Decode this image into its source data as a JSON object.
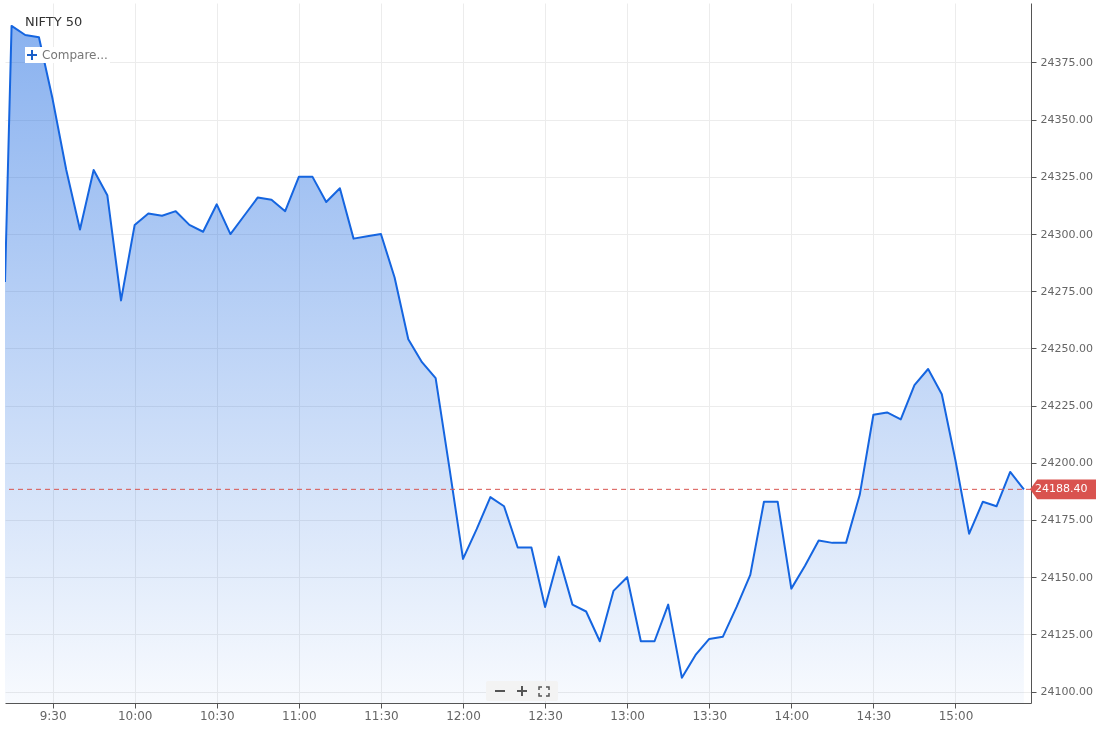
{
  "chart_data": {
    "type": "area",
    "title": "NIFTY 50",
    "annotations": [
      "Compare..."
    ],
    "x": [
      9.21,
      9.25,
      9.3333,
      9.4167,
      9.5,
      9.5833,
      9.6667,
      9.75,
      9.8333,
      9.9167,
      10,
      10.0833,
      10.1667,
      10.25,
      10.3333,
      10.4167,
      10.5,
      10.5833,
      10.6667,
      10.75,
      10.8333,
      10.9167,
      11,
      11.0833,
      11.1667,
      11.25,
      11.3333,
      11.4167,
      11.5,
      11.5833,
      11.6667,
      11.75,
      11.8333,
      11.9167,
      12,
      12.0833,
      12.1667,
      12.25,
      12.3333,
      12.4167,
      12.5,
      12.5833,
      12.6667,
      12.75,
      12.8333,
      12.9167,
      13,
      13.0833,
      13.1667,
      13.25,
      13.3333,
      13.4167,
      13.5,
      13.5833,
      13.6667,
      13.75,
      13.8333,
      13.9167,
      14,
      14.0833,
      14.1667,
      14.25,
      14.3333,
      14.4167,
      14.5,
      14.5833,
      14.6667,
      14.75,
      14.8333,
      14.9167,
      15,
      15.0833,
      15.1667,
      15.25,
      15.3333,
      15.4167
    ],
    "series": [
      {
        "color": "#1565e0",
        "values": [
          24279,
          24391,
          24387,
          24386,
          24359,
          24328,
          24302,
          24328,
          24317,
          24271,
          24304,
          24309,
          24308,
          24310,
          24304,
          24301,
          24313,
          24300,
          24308,
          24316,
          24315,
          24310,
          24325,
          24325,
          24314,
          24320,
          24298,
          24299,
          24300,
          24281,
          24254,
          24244,
          24237,
          24198,
          24158,
          24171,
          24185,
          24181,
          24163,
          24163,
          24137,
          24159,
          24138,
          24135,
          24122,
          24144,
          24150,
          24122,
          24122,
          24138,
          24106,
          24116,
          24123,
          24124,
          24137,
          24151,
          24183,
          24183,
          24145,
          24155,
          24166,
          24165,
          24165,
          24186,
          24221,
          24222,
          24219,
          24234,
          24241,
          24230,
          24201,
          24169,
          24183,
          24181,
          24196,
          24188.4
        ]
      }
    ],
    "xlim": [
      9.21,
      15.46
    ],
    "xticks": [
      {
        "value": 9.5,
        "label": "9:30"
      },
      {
        "value": 10,
        "label": "10:00"
      },
      {
        "value": 10.5,
        "label": "10:30"
      },
      {
        "value": 11,
        "label": "11:00"
      },
      {
        "value": 11.5,
        "label": "11:30"
      },
      {
        "value": 12,
        "label": "12:00"
      },
      {
        "value": 12.5,
        "label": "12:30"
      },
      {
        "value": 13,
        "label": "13:00"
      },
      {
        "value": 13.5,
        "label": "13:30"
      },
      {
        "value": 14,
        "label": "14:00"
      },
      {
        "value": 14.5,
        "label": "14:30"
      },
      {
        "value": 15,
        "label": "15:00"
      }
    ],
    "ylim": [
      24095,
      24401
    ],
    "yticks": [
      {
        "value": 24100,
        "label": "24100.00"
      },
      {
        "value": 24125,
        "label": "24125.00"
      },
      {
        "value": 24150,
        "label": "24150.00"
      },
      {
        "value": 24175,
        "label": "24175.00"
      },
      {
        "value": 24200,
        "label": "24200.00"
      },
      {
        "value": 24225,
        "label": "24225.00"
      },
      {
        "value": 24250,
        "label": "24250.00"
      },
      {
        "value": 24275,
        "label": "24275.00"
      },
      {
        "value": 24300,
        "label": "24300.00"
      },
      {
        "value": 24325,
        "label": "24325.00"
      },
      {
        "value": 24350,
        "label": "24350.00"
      },
      {
        "value": 24375,
        "label": "24375.00"
      }
    ],
    "ref_lines": [
      {
        "axis": "y",
        "value": 24188.4,
        "label": "24188.40",
        "color": "#d9534f",
        "line_style": "dashed"
      }
    ],
    "grid": true,
    "marker": "none",
    "line_style": "solid"
  }
}
